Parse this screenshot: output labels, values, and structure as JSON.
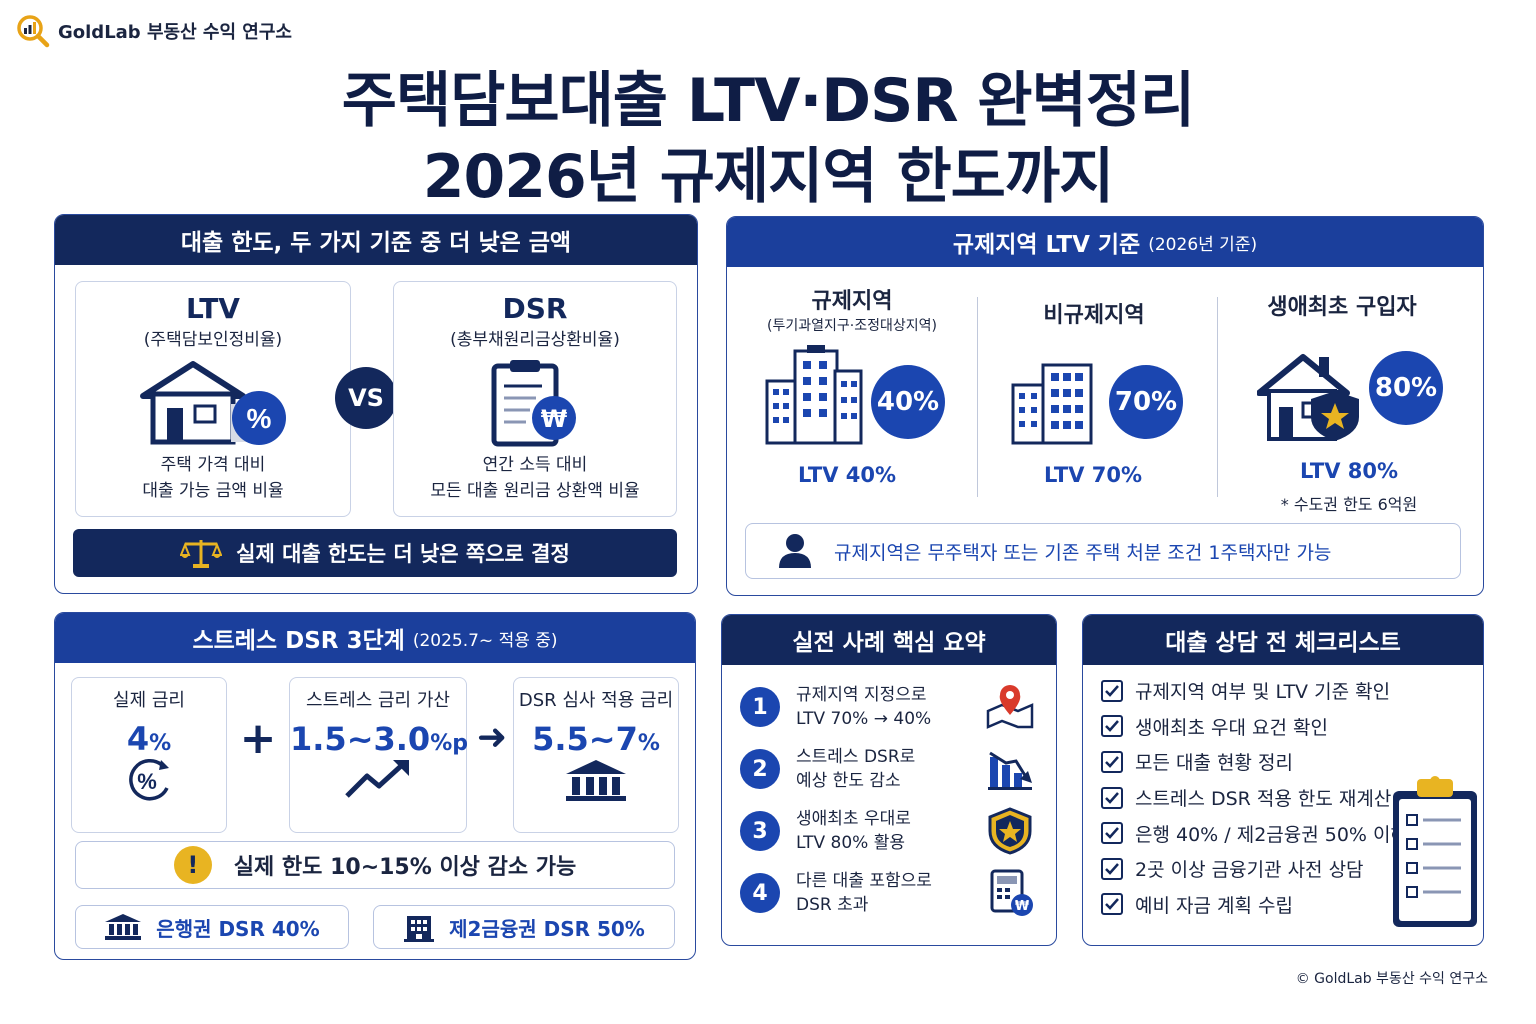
{
  "brand": {
    "name": "GoldLab 부동산 수익 연구소",
    "icon": "magnifier-chart-icon",
    "color": "#e8a317"
  },
  "title": {
    "line1": "주택담보대출 LTV·DSR 완벽정리",
    "line2": "2026년 규제지역 한도까지"
  },
  "colors": {
    "navy": "#13285c",
    "blue": "#1b46b0",
    "gold": "#e8b422"
  },
  "compare": {
    "header": "대출 한도, 두 가지 기준 중 더 낮은 금액",
    "ltv": {
      "title": "LTV",
      "subtitle": "(주택담보인정비율)",
      "desc1": "주택 가격 대비",
      "desc2": "대출 가능 금액 비율",
      "icon": "house-percent-icon"
    },
    "vs": "VS",
    "dsr": {
      "title": "DSR",
      "subtitle": "(총부채원리금상환비율)",
      "desc1": "연간 소득 대비",
      "desc2": "모든 대출 원리금 상환액 비율",
      "icon": "clipboard-won-icon"
    },
    "conclusion": "실제 대출 한도는 더 낮은 쪽으로 결정",
    "conclusion_icon": "scale-icon"
  },
  "regulation": {
    "header": "규제지역 LTV 기준",
    "header_sub": "(2026년 기준)",
    "regions": [
      {
        "title": "규제지역",
        "subtitle": "(투기과열지구·조정대상지역)",
        "percent": "40%",
        "ltv": "LTV 40%",
        "note": "",
        "icon": "tall-buildings-icon"
      },
      {
        "title": "비규제지역",
        "subtitle": "",
        "percent": "70%",
        "ltv": "LTV 70%",
        "note": "",
        "icon": "buildings-icon"
      },
      {
        "title": "생애최초 구입자",
        "subtitle": "",
        "percent": "80%",
        "ltv": "LTV 80%",
        "note": "* 수도권 한도 6억원",
        "icon": "house-star-icon"
      }
    ],
    "notice": "규제지역은 무주택자 또는 기존 주택 처분 조건 1주택자만 가능",
    "notice_icon": "person-icon"
  },
  "stress": {
    "header": "스트레스 DSR 3단계",
    "header_sub": "(2025.7~ 적용 중)",
    "boxes": [
      {
        "label": "실제 금리",
        "value": "4",
        "unit": "%",
        "icon": "percent-circle-icon"
      },
      {
        "label": "스트레스 금리 가산",
        "value": "1.5~3.0",
        "unit": "%p",
        "icon": "trend-up-icon"
      },
      {
        "label": "DSR 심사 적용 금리",
        "value": "5.5~7",
        "unit": "%",
        "icon": "bank-icon"
      }
    ],
    "plus": "+",
    "arrow": "➜",
    "warning": "실제 한도 10~15% 이상 감소 가능",
    "warning_icon": "exclamation-icon",
    "bank_dsr": "은행권 DSR 40%",
    "second_dsr": "제2금융권 DSR 50%"
  },
  "cases": {
    "header": "실전 사례 핵심 요약",
    "items": [
      {
        "num": "1",
        "line1": "규제지역 지정으로",
        "line2": "LTV 70% → 40%",
        "icon": "map-pin-icon"
      },
      {
        "num": "2",
        "line1": "스트레스 DSR로",
        "line2": "예상 한도 감소",
        "icon": "chart-down-icon"
      },
      {
        "num": "3",
        "line1": "생애최초 우대로",
        "line2": "LTV 80% 활용",
        "icon": "shield-star-icon"
      },
      {
        "num": "4",
        "line1": "다른 대출 포함으로",
        "line2": "DSR 초과",
        "icon": "calculator-won-icon"
      }
    ]
  },
  "checklist": {
    "header": "대출 상담 전 체크리스트",
    "items": [
      "규제지역 여부 및 LTV 기준 확인",
      "생애최초 우대 요건 확인",
      "모든 대출 현황 정리",
      "스트레스 DSR 적용 한도 재계산",
      "은행 40% / 제2금융권 50% 이해",
      "2곳 이상 금융기관 사전 상담",
      "예비 자금 계획 수립"
    ],
    "icon": "clipboard-checklist-icon"
  },
  "footer": "© GoldLab 부동산 수익 연구소"
}
